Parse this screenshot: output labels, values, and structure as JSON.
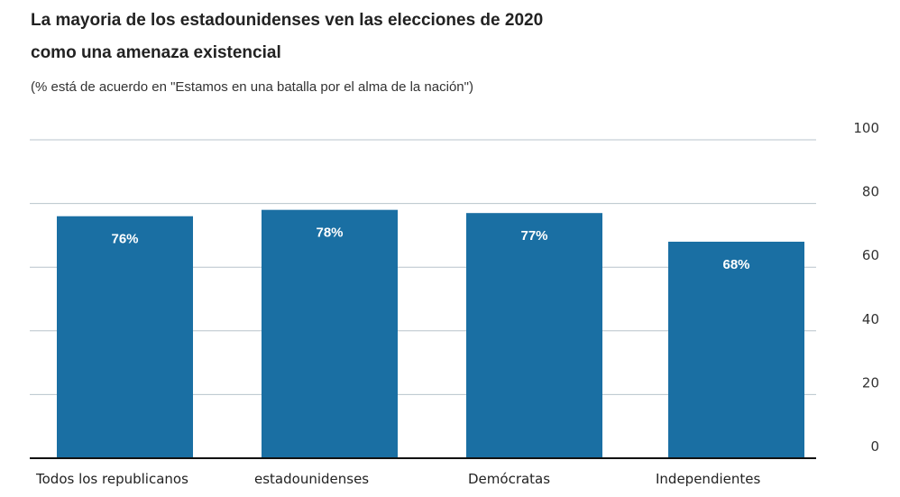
{
  "chart_data": {
    "type": "bar",
    "title": [
      "La mayoria de los estadounidenses ven las elecciones de 2020",
      "como una amenaza existencial"
    ],
    "subtitle": "(% está de acuerdo en \"Estamos en una batalla por el alma de la nación\")",
    "categories": [
      "Todos los republicanos",
      "estadounidenses",
      "Demócratas",
      "Independientes"
    ],
    "values": [
      76,
      78,
      77,
      68
    ],
    "data_labels": [
      "76%",
      "78%",
      "77%",
      "68%"
    ],
    "ylim": [
      0,
      100
    ],
    "yticks": [
      "0",
      "20",
      "40",
      "60",
      "80",
      "100"
    ],
    "grid": true,
    "bar_color": "#1a6fa3"
  }
}
